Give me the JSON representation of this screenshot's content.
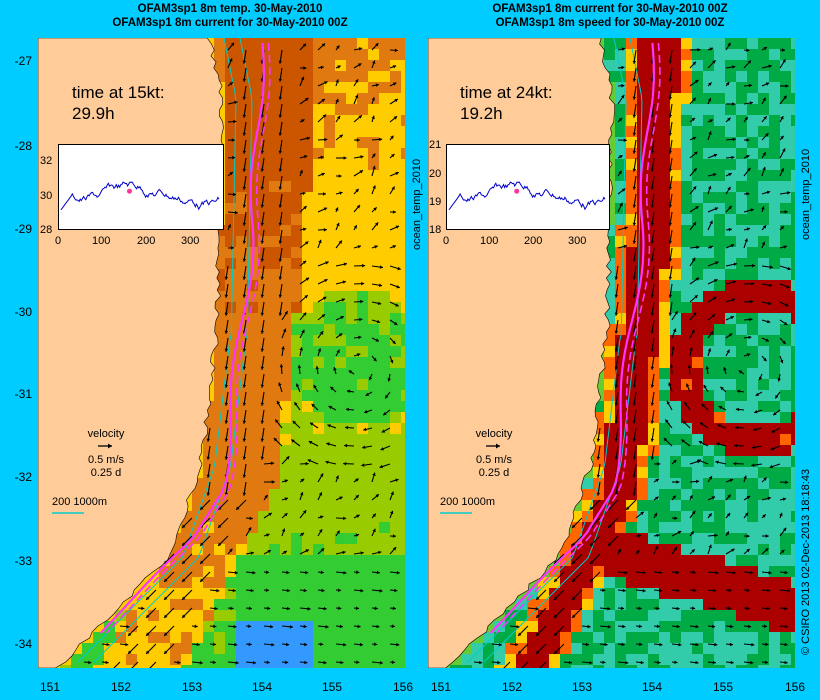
{
  "titles": {
    "left": [
      "OFAM3sp1 8m temp. 30-May-2010",
      "OFAM3sp1 8m current for 30-May-2010 00Z"
    ],
    "right": [
      "OFAM3sp1 8m current for 30-May-2010 00Z",
      "OFAM3sp1 8m speed for 30-May-2010 00Z"
    ]
  },
  "y_ticks": [
    "-27",
    "-28",
    "-29",
    "-30",
    "-31",
    "-32",
    "-33",
    "-34"
  ],
  "x_ticks": [
    "151",
    "152",
    "153",
    "154",
    "155",
    "156"
  ],
  "left_panel": {
    "time_label": "time at 15kt:",
    "time_value": "29.9h",
    "inset": {
      "y_ticks": [
        "32",
        "30",
        "28"
      ],
      "x_ticks": [
        "0",
        "100",
        "200",
        "300"
      ],
      "ylim": [
        28,
        33
      ],
      "xlim": [
        0,
        365
      ]
    },
    "velocity_label": "velocity",
    "velocity_speed": "0.5 m/s",
    "velocity_days": "0.25 d",
    "scale_label": "200  1000m",
    "side_label": "ocean_temp_2010"
  },
  "right_panel": {
    "time_label": "time at 24kt:",
    "time_value": "19.2h",
    "inset": {
      "y_ticks": [
        "21",
        "20",
        "19",
        "18"
      ],
      "x_ticks": [
        "0",
        "100",
        "200",
        "300"
      ],
      "ylim": [
        18,
        21
      ],
      "xlim": [
        0,
        365
      ]
    },
    "velocity_label": "velocity",
    "velocity_speed": "0.5 m/s",
    "velocity_days": "0.25 d",
    "scale_label": "200  1000m",
    "side_label": "ocean_temp_2010"
  },
  "credit": "© CSIRO 2013   02-Dec-2013 18:18:43",
  "colors": {
    "background": "#00ccff",
    "land": "#ffcc99",
    "route": "#ff33ff",
    "temp_cold": "#33cc33",
    "temp_mid": "#ffcc00",
    "temp_warm": "#cc5500",
    "speed_fast": "#aa0000",
    "speed_slow": "#00aa44"
  }
}
